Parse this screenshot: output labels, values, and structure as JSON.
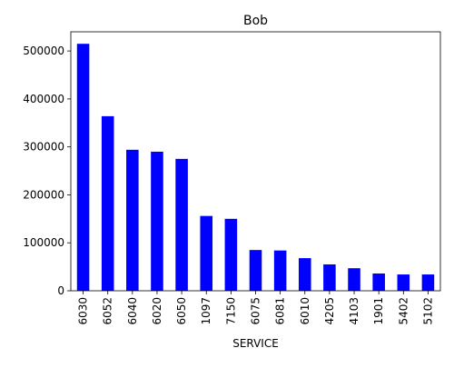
{
  "chart_data": {
    "type": "bar",
    "title": "Bob",
    "xlabel": "SERVICE",
    "ylabel": "",
    "categories": [
      "6030",
      "6052",
      "6040",
      "6020",
      "6050",
      "1097",
      "7150",
      "6075",
      "6081",
      "6010",
      "4205",
      "4103",
      "1901",
      "5402",
      "5102"
    ],
    "values": [
      515000,
      364000,
      294000,
      290000,
      275000,
      156000,
      150000,
      85000,
      84000,
      68000,
      55000,
      47000,
      36000,
      34000,
      34000
    ],
    "ylim": [
      0,
      540000
    ],
    "yticks": [
      0,
      100000,
      200000,
      300000,
      400000,
      500000
    ],
    "ytick_labels": [
      "0",
      "100000",
      "200000",
      "300000",
      "400000",
      "500000"
    ],
    "bar_color": "#0000ff",
    "grid": false,
    "legend": false
  }
}
